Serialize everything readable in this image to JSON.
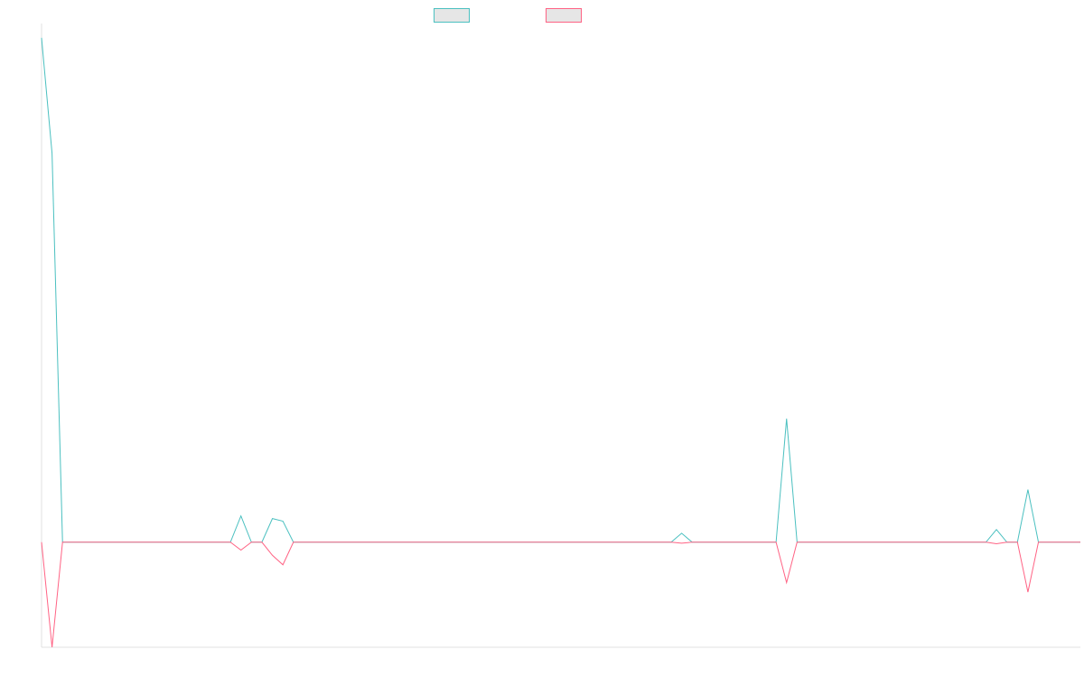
{
  "colors": {
    "series_1": "#4bc0c0",
    "series_2": "#ff6384",
    "legend_fill": "#e6e6e6",
    "axis": "#e0e0e0"
  },
  "chart_data": {
    "type": "line",
    "title": "",
    "xlabel": "",
    "ylabel": "",
    "grid": false,
    "legend": "top-center",
    "x": [
      0,
      1,
      2,
      3,
      4,
      5,
      6,
      7,
      8,
      9,
      10,
      11,
      12,
      13,
      14,
      15,
      16,
      17,
      18,
      19,
      20,
      21,
      22,
      23,
      24,
      25,
      26,
      27,
      28,
      29,
      30,
      31,
      32,
      33,
      34,
      35,
      36,
      37,
      38,
      39,
      40,
      41,
      42,
      43,
      44,
      45,
      46,
      47,
      48,
      49,
      50,
      51,
      52,
      53,
      54,
      55,
      56,
      57,
      58,
      59,
      60,
      61,
      62,
      63,
      64,
      65,
      66,
      67,
      68,
      69,
      70,
      71,
      72,
      73,
      74,
      75,
      76,
      77,
      78,
      79,
      80,
      81,
      82,
      83,
      84,
      85,
      86,
      87,
      88,
      89,
      90,
      91,
      92,
      93,
      94,
      95,
      96,
      97,
      98,
      99
    ],
    "ylim": [
      -20,
      97
    ],
    "series": [
      {
        "values": [
          96,
          74,
          0,
          0,
          0,
          0,
          0,
          0,
          0,
          0,
          0,
          0,
          0,
          0,
          0,
          0,
          0,
          0,
          0,
          5,
          0,
          0,
          4.5,
          4,
          0,
          0,
          0,
          0,
          0,
          0,
          0,
          0,
          0,
          0,
          0,
          0,
          0,
          0,
          0,
          0,
          0,
          0,
          0,
          0,
          0,
          0,
          0,
          0,
          0,
          0,
          0,
          0,
          0,
          0,
          0,
          0,
          0,
          0,
          0,
          0,
          0,
          1.7,
          0,
          0,
          0,
          0,
          0,
          0,
          0,
          0,
          0,
          23.5,
          0,
          0,
          0,
          0,
          0,
          0,
          0,
          0,
          0,
          0,
          0,
          0,
          0,
          0,
          0,
          0,
          0,
          0,
          0,
          2.4,
          0,
          0,
          10,
          0,
          0,
          0,
          0,
          0
        ]
      },
      {
        "values": [
          0,
          -20,
          0,
          0,
          0,
          0,
          0,
          0,
          0,
          0,
          0,
          0,
          0,
          0,
          0,
          0,
          0,
          0,
          0,
          -1.5,
          0,
          0,
          -2.5,
          -4.3,
          0,
          0,
          0,
          0,
          0,
          0,
          0,
          0,
          0,
          0,
          0,
          0,
          0,
          0,
          0,
          0,
          0,
          0,
          0,
          0,
          0,
          0,
          0,
          0,
          0,
          0,
          0,
          0,
          0,
          0,
          0,
          0,
          0,
          0,
          0,
          0,
          0,
          -0.2,
          0,
          0,
          0,
          0,
          0,
          0,
          0,
          0,
          0,
          -7.7,
          0,
          0,
          0,
          0,
          0,
          0,
          0,
          0,
          0,
          0,
          0,
          0,
          0,
          0,
          0,
          0,
          0,
          0,
          0,
          -0.3,
          0,
          0,
          -9.5,
          0,
          0,
          0,
          0,
          0
        ]
      }
    ]
  }
}
